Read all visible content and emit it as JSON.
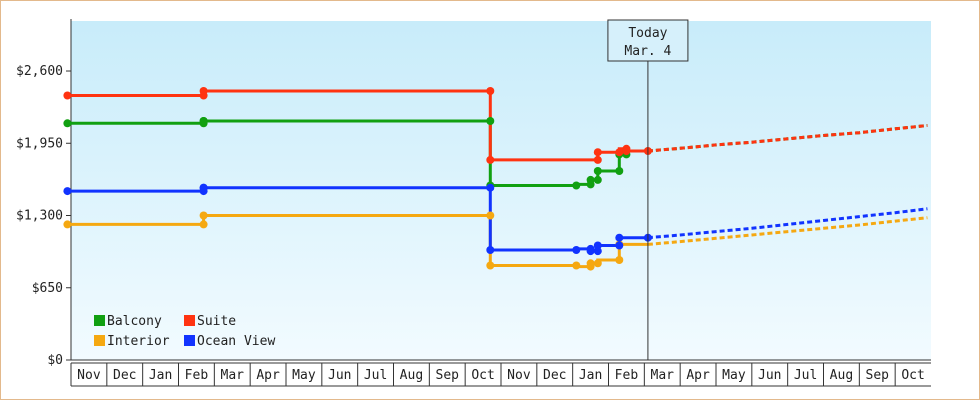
{
  "chart_data": {
    "type": "line",
    "title": "",
    "xlabel": "",
    "ylabel": "",
    "ylim": [
      0,
      3050
    ],
    "y_ticks": [
      0,
      650,
      1300,
      1950,
      2600
    ],
    "y_tick_labels": [
      "$0",
      "$650",
      "$1,300",
      "$1,950",
      "$2,600"
    ],
    "x_months": [
      "Nov",
      "Dec",
      "Jan",
      "Feb",
      "Mar",
      "Apr",
      "May",
      "Jun",
      "Jul",
      "Aug",
      "Sep",
      "Oct",
      "Nov",
      "Dec",
      "Jan",
      "Feb",
      "Mar",
      "Apr",
      "May",
      "Jun",
      "Jul",
      "Aug",
      "Sep",
      "Oct"
    ],
    "today": {
      "line1": "Today",
      "line2": "Mar. 4",
      "x": 16.1
    },
    "legend": {
      "placement": "bottom-left"
    },
    "grid": false,
    "series": [
      {
        "name": "Balcony",
        "color": "#11a011",
        "points": [
          [
            -0.1,
            2130
          ],
          [
            3.7,
            2130
          ],
          [
            3.7,
            2150
          ],
          [
            11.7,
            2150
          ],
          [
            11.7,
            1570
          ],
          [
            14.1,
            1570
          ],
          [
            14.1,
            1580
          ],
          [
            14.5,
            1580
          ],
          [
            14.5,
            1620
          ],
          [
            14.7,
            1620
          ],
          [
            14.7,
            1700
          ],
          [
            15.3,
            1700
          ],
          [
            15.3,
            1850
          ],
          [
            15.5,
            1850
          ],
          [
            15.5,
            1880
          ],
          [
            16.1,
            1880
          ]
        ],
        "forecast": [
          [
            16.1,
            1880
          ],
          [
            17.0,
            1905
          ],
          [
            18.0,
            1935
          ],
          [
            19.0,
            1960
          ],
          [
            20.0,
            1990
          ],
          [
            21.0,
            2020
          ],
          [
            22.0,
            2045
          ],
          [
            23.0,
            2080
          ],
          [
            23.9,
            2110
          ]
        ]
      },
      {
        "name": "Suite",
        "color": "#ff3311",
        "points": [
          [
            -0.1,
            2380
          ],
          [
            3.7,
            2380
          ],
          [
            3.7,
            2420
          ],
          [
            11.7,
            2420
          ],
          [
            11.7,
            1800
          ],
          [
            14.7,
            1800
          ],
          [
            14.7,
            1870
          ],
          [
            15.3,
            1870
          ],
          [
            15.3,
            1900
          ],
          [
            15.5,
            1900
          ],
          [
            15.5,
            1880
          ],
          [
            16.1,
            1880
          ]
        ],
        "forecast": [
          [
            16.1,
            1880
          ],
          [
            17.0,
            1905
          ],
          [
            18.0,
            1935
          ],
          [
            19.0,
            1960
          ],
          [
            20.0,
            1990
          ],
          [
            21.0,
            2020
          ],
          [
            22.0,
            2045
          ],
          [
            23.0,
            2080
          ],
          [
            23.9,
            2110
          ]
        ]
      },
      {
        "name": "Interior",
        "color": "#f5a811",
        "points": [
          [
            -0.1,
            1220
          ],
          [
            3.7,
            1220
          ],
          [
            3.7,
            1300
          ],
          [
            11.7,
            1300
          ],
          [
            11.7,
            850
          ],
          [
            14.1,
            850
          ],
          [
            14.1,
            840
          ],
          [
            14.5,
            840
          ],
          [
            14.5,
            870
          ],
          [
            14.7,
            870
          ],
          [
            14.7,
            900
          ],
          [
            15.3,
            900
          ],
          [
            15.3,
            1040
          ],
          [
            16.1,
            1040
          ]
        ],
        "forecast": [
          [
            16.1,
            1040
          ],
          [
            17.0,
            1065
          ],
          [
            18.0,
            1095
          ],
          [
            19.0,
            1125
          ],
          [
            20.0,
            1155
          ],
          [
            21.0,
            1185
          ],
          [
            22.0,
            1215
          ],
          [
            23.0,
            1250
          ],
          [
            23.9,
            1280
          ]
        ]
      },
      {
        "name": "Ocean View",
        "color": "#1133ff",
        "points": [
          [
            -0.1,
            1520
          ],
          [
            3.7,
            1520
          ],
          [
            3.7,
            1550
          ],
          [
            11.7,
            1550
          ],
          [
            11.7,
            990
          ],
          [
            14.1,
            990
          ],
          [
            14.1,
            1000
          ],
          [
            14.5,
            1000
          ],
          [
            14.5,
            980
          ],
          [
            14.7,
            980
          ],
          [
            14.7,
            1030
          ],
          [
            15.3,
            1030
          ],
          [
            15.3,
            1100
          ],
          [
            16.1,
            1100
          ]
        ],
        "forecast": [
          [
            16.1,
            1100
          ],
          [
            17.0,
            1125
          ],
          [
            18.0,
            1155
          ],
          [
            19.0,
            1185
          ],
          [
            20.0,
            1220
          ],
          [
            21.0,
            1255
          ],
          [
            22.0,
            1290
          ],
          [
            23.0,
            1325
          ],
          [
            23.9,
            1360
          ]
        ]
      }
    ],
    "markers": [
      {
        "series": "Balcony",
        "x": [
          -0.1,
          3.7,
          3.7,
          3.7,
          11.7,
          11.7,
          14.1,
          14.5,
          14.5,
          14.7,
          14.7,
          15.3,
          15.3,
          15.5
        ]
      },
      {
        "series": "Suite",
        "x": [
          -0.1,
          3.7,
          3.7,
          11.7,
          11.7,
          14.7,
          14.7,
          15.3,
          15.5,
          15.5,
          16.1
        ]
      },
      {
        "series": "Interior",
        "x": [
          -0.1,
          3.7,
          3.7,
          11.7,
          11.7,
          14.1,
          14.5,
          14.5,
          14.7,
          15.3,
          15.3
        ]
      },
      {
        "series": "Ocean View",
        "x": [
          -0.1,
          3.7,
          3.7,
          3.7,
          11.7,
          11.7,
          14.1,
          14.5,
          14.5,
          14.7,
          14.7,
          15.3,
          15.3,
          16.1
        ]
      }
    ]
  }
}
